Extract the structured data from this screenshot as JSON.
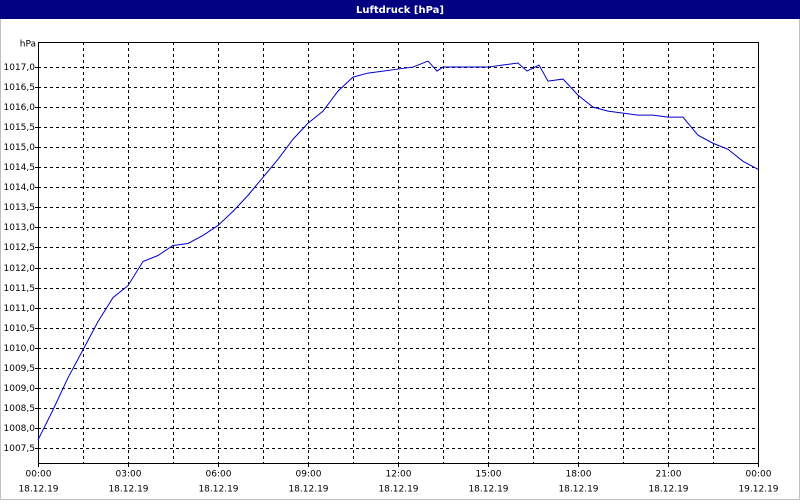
{
  "chart_data": {
    "type": "line",
    "title": "Luftdruck [hPa]",
    "y_label": "hPa",
    "x": [
      0,
      0.5,
      1,
      1.5,
      2,
      2.5,
      3,
      3.5,
      4,
      4.5,
      5,
      5.5,
      6,
      6.5,
      7,
      7.5,
      8,
      8.5,
      9,
      9.5,
      10,
      10.5,
      11,
      11.5,
      12,
      12.5,
      13,
      13.3,
      13.5,
      14,
      14.5,
      15,
      15.5,
      16,
      16.3,
      16.7,
      17,
      17.5,
      18,
      18.5,
      19,
      19.5,
      20,
      20.5,
      21,
      21.5,
      22,
      22.5,
      23,
      23.5,
      24
    ],
    "series": [
      {
        "name": "Luftdruck",
        "color": "#0000cc",
        "values": [
          1007.7,
          1008.45,
          1009.25,
          1009.95,
          1010.65,
          1011.25,
          1011.55,
          1012.15,
          1012.3,
          1012.55,
          1012.6,
          1012.8,
          1013.05,
          1013.4,
          1013.8,
          1014.25,
          1014.7,
          1015.2,
          1015.6,
          1015.9,
          1016.4,
          1016.75,
          1016.85,
          1016.9,
          1016.95,
          1017.0,
          1017.15,
          1016.9,
          1017.0,
          1017.0,
          1017.0,
          1017.0,
          1017.05,
          1017.1,
          1016.9,
          1017.05,
          1016.65,
          1016.7,
          1016.3,
          1016.0,
          1015.9,
          1015.85,
          1015.8,
          1015.8,
          1015.75,
          1015.75,
          1015.3,
          1015.1,
          1014.95,
          1014.65,
          1014.45
        ]
      }
    ],
    "xlim": [
      0,
      24
    ],
    "ylim": [
      1007.125,
      1017.625
    ],
    "xticks": [
      {
        "value": 0,
        "label": "00:00"
      },
      {
        "value": 3,
        "label": "03:00"
      },
      {
        "value": 6,
        "label": "06:00"
      },
      {
        "value": 9,
        "label": "09:00"
      },
      {
        "value": 12,
        "label": "12:00"
      },
      {
        "value": 15,
        "label": "15:00"
      },
      {
        "value": 18,
        "label": "18:00"
      },
      {
        "value": 21,
        "label": "21:00"
      },
      {
        "value": 24,
        "label": "00:00"
      }
    ],
    "xtick_dates": [
      "18.12.19",
      "18.12.19",
      "18.12.19",
      "18.12.19",
      "18.12.19",
      "18.12.19",
      "18.12.19",
      "18.12.19",
      "19.12.19"
    ],
    "xminor": [
      1.5,
      4.5,
      7.5,
      10.5,
      13.5,
      16.5,
      19.5,
      22.5
    ],
    "yticks": [
      {
        "value": 1007.5,
        "label": "1007,5"
      },
      {
        "value": 1008.0,
        "label": "1008,0"
      },
      {
        "value": 1008.5,
        "label": "1008,5"
      },
      {
        "value": 1009.0,
        "label": "1009,0"
      },
      {
        "value": 1009.5,
        "label": "1009,5"
      },
      {
        "value": 1010.0,
        "label": "1010,0"
      },
      {
        "value": 1010.5,
        "label": "1010,5"
      },
      {
        "value": 1011.0,
        "label": "1011,0"
      },
      {
        "value": 1011.5,
        "label": "1011,5"
      },
      {
        "value": 1012.0,
        "label": "1012,0"
      },
      {
        "value": 1012.5,
        "label": "1012,5"
      },
      {
        "value": 1013.0,
        "label": "1013,0"
      },
      {
        "value": 1013.5,
        "label": "1013,5"
      },
      {
        "value": 1014.0,
        "label": "1014,0"
      },
      {
        "value": 1014.5,
        "label": "1014,5"
      },
      {
        "value": 1015.0,
        "label": "1015,0"
      },
      {
        "value": 1015.5,
        "label": "1015,5"
      },
      {
        "value": 1016.0,
        "label": "1016,0"
      },
      {
        "value": 1016.5,
        "label": "1016,5"
      },
      {
        "value": 1017.0,
        "label": "1017,0"
      }
    ],
    "grid": true
  }
}
